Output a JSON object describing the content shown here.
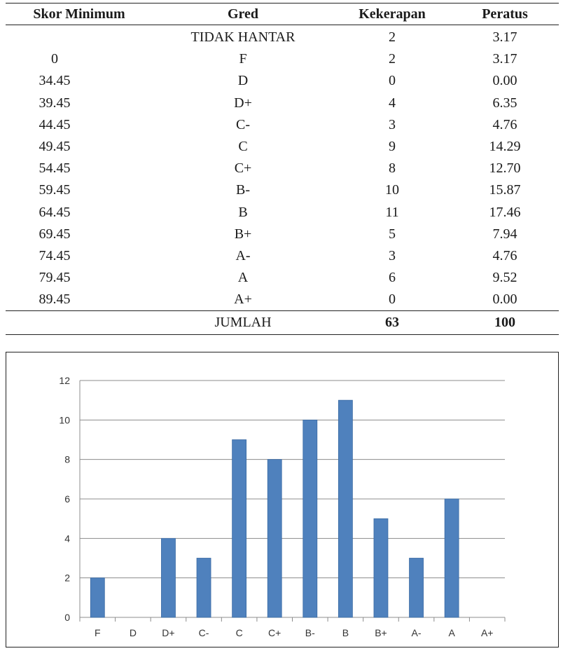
{
  "table": {
    "headers": [
      "Skor Minimum",
      "Gred",
      "Kekerapan",
      "Peratus"
    ],
    "rows": [
      {
        "skor": "",
        "gred": "TIDAK HANTAR",
        "kekerapan": "2",
        "peratus": "3.17"
      },
      {
        "skor": "0",
        "gred": "F",
        "kekerapan": "2",
        "peratus": "3.17"
      },
      {
        "skor": "34.45",
        "gred": "D",
        "kekerapan": "0",
        "peratus": "0.00"
      },
      {
        "skor": "39.45",
        "gred": "D+",
        "kekerapan": "4",
        "peratus": "6.35"
      },
      {
        "skor": "44.45",
        "gred": "C-",
        "kekerapan": "3",
        "peratus": "4.76"
      },
      {
        "skor": "49.45",
        "gred": "C",
        "kekerapan": "9",
        "peratus": "14.29"
      },
      {
        "skor": "54.45",
        "gred": "C+",
        "kekerapan": "8",
        "peratus": "12.70"
      },
      {
        "skor": "59.45",
        "gred": "B-",
        "kekerapan": "10",
        "peratus": "15.87"
      },
      {
        "skor": "64.45",
        "gred": "B",
        "kekerapan": "11",
        "peratus": "17.46"
      },
      {
        "skor": "69.45",
        "gred": "B+",
        "kekerapan": "5",
        "peratus": "7.94"
      },
      {
        "skor": "74.45",
        "gred": "A-",
        "kekerapan": "3",
        "peratus": "4.76"
      },
      {
        "skor": "79.45",
        "gred": "A",
        "kekerapan": "6",
        "peratus": "9.52"
      },
      {
        "skor": "89.45",
        "gred": "A+",
        "kekerapan": "0",
        "peratus": "0.00"
      }
    ],
    "total": {
      "skor": "",
      "gred": "JUMLAH",
      "kekerapan": "63",
      "peratus": "100"
    }
  },
  "chart_data": {
    "type": "bar",
    "categories": [
      "F",
      "D",
      "D+",
      "C-",
      "C",
      "C+",
      "B-",
      "B",
      "B+",
      "A-",
      "A",
      "A+"
    ],
    "values": [
      2,
      0,
      4,
      3,
      9,
      8,
      10,
      11,
      5,
      3,
      6,
      0
    ],
    "title": "",
    "xlabel": "",
    "ylabel": "",
    "ylim": [
      0,
      12
    ],
    "yticks": [
      0,
      2,
      4,
      6,
      8,
      10,
      12
    ],
    "grid": true,
    "legend": "none",
    "bar_color": "#4f81bd",
    "bar_edge_color": "#3a6aa3",
    "grid_color": "#8c8c8c"
  }
}
